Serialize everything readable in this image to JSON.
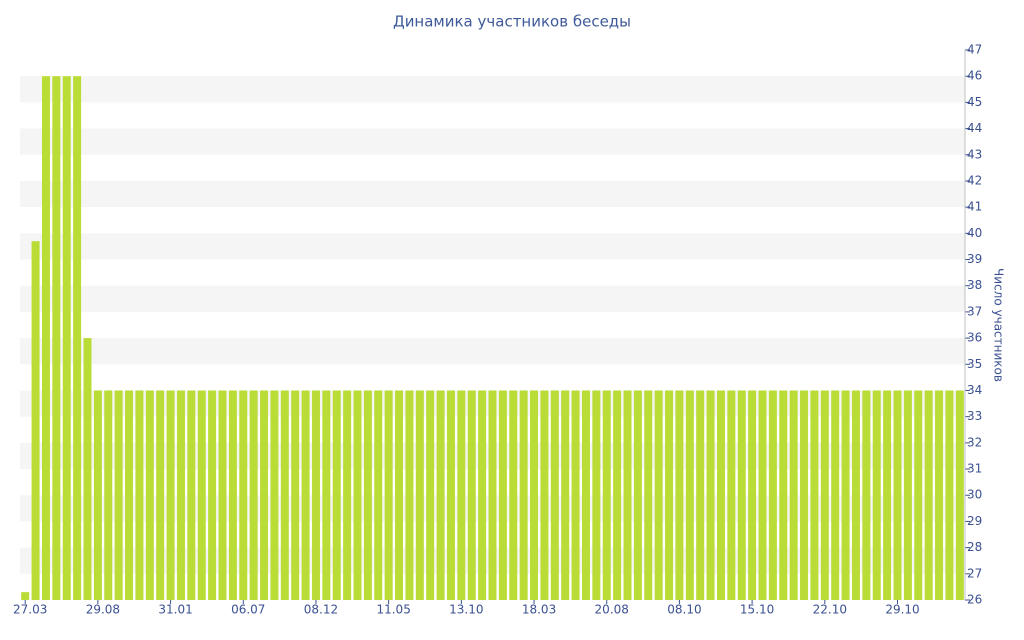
{
  "chart_data": {
    "type": "bar",
    "title": "Динамика участников беседы",
    "y_axis_label": "Число участников",
    "y_axis_side": "right",
    "grid": "bands",
    "color": "#b9dc36",
    "categories": [
      "27.03",
      null,
      null,
      null,
      null,
      null,
      null,
      "29.08",
      null,
      null,
      null,
      null,
      null,
      null,
      "31.01",
      null,
      null,
      null,
      null,
      null,
      null,
      "06.07",
      null,
      null,
      null,
      null,
      null,
      null,
      "08.12",
      null,
      null,
      null,
      null,
      null,
      null,
      "11.05",
      null,
      null,
      null,
      null,
      null,
      null,
      "13.10",
      null,
      null,
      null,
      null,
      null,
      null,
      "18.03",
      null,
      null,
      null,
      null,
      null,
      null,
      "20.08",
      null,
      null,
      null,
      null,
      null,
      null,
      "08.10",
      null,
      null,
      null,
      null,
      null,
      null,
      "15.10",
      null,
      null,
      null,
      null,
      null,
      null,
      "22.10",
      null,
      null,
      null,
      null,
      null,
      null,
      "29.10",
      null,
      null,
      null,
      null,
      null,
      null
    ],
    "values": [
      26.3,
      39.7,
      46,
      46,
      46,
      46,
      36,
      34,
      34,
      34,
      34,
      34,
      34,
      34,
      34,
      34,
      34,
      34,
      34,
      34,
      34,
      34,
      34,
      34,
      34,
      34,
      34,
      34,
      34,
      34,
      34,
      34,
      34,
      34,
      34,
      34,
      34,
      34,
      34,
      34,
      34,
      34,
      34,
      34,
      34,
      34,
      34,
      34,
      34,
      34,
      34,
      34,
      34,
      34,
      34,
      34,
      34,
      34,
      34,
      34,
      34,
      34,
      34,
      34,
      34,
      34,
      34,
      34,
      34,
      34,
      34,
      34,
      34,
      34,
      34,
      34,
      34,
      34,
      34,
      34,
      34,
      34,
      34,
      34,
      34,
      34,
      34,
      34,
      34,
      34,
      34
    ],
    "ylim": [
      26,
      47
    ],
    "yticks": [
      26,
      27,
      28,
      29,
      30,
      31,
      32,
      33,
      34,
      35,
      36,
      37,
      38,
      39,
      40,
      41,
      42,
      43,
      44,
      45,
      46,
      47
    ]
  }
}
